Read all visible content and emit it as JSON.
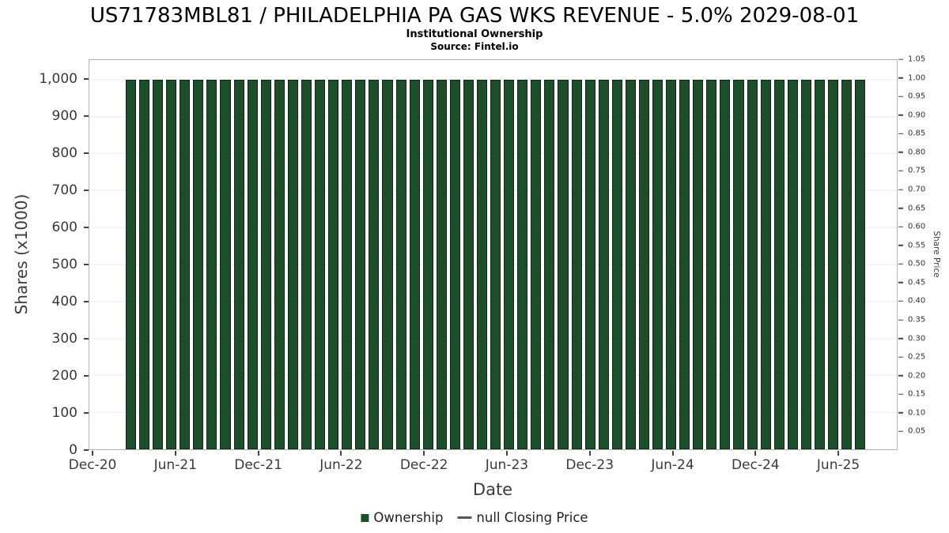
{
  "chart_data": {
    "type": "bar",
    "title": "US71783MBL81 / PHILADELPHIA PA GAS WKS REVENUE - 5.0% 2029-08-01",
    "subtitle": "Institutional Ownership",
    "source": "Source: Fintel.io",
    "xlabel": "Date",
    "ylabel_left": "Shares (x1000)",
    "ylabel_right": "Share Price",
    "bar_color": "#1e4d2c",
    "bar_edge_color": "#0d2b16",
    "ylim_left": [
      0,
      1053
    ],
    "ylim_right": [
      0,
      1.05
    ],
    "x_tick_labels": [
      "Dec-20",
      "Jun-21",
      "Dec-21",
      "Jun-22",
      "Dec-22",
      "Jun-23",
      "Dec-23",
      "Jun-24",
      "Dec-24",
      "Jun-25"
    ],
    "y_ticks_left": {
      "labels": [
        "0",
        "100",
        "200",
        "300",
        "400",
        "500",
        "600",
        "700",
        "800",
        "900",
        "1,000"
      ],
      "values": [
        0,
        100,
        200,
        300,
        400,
        500,
        600,
        700,
        800,
        900,
        1000
      ]
    },
    "y_ticks_right_labels": [
      "0.05",
      "0.10",
      "0.15",
      "0.20",
      "0.25",
      "0.30",
      "0.35",
      "0.40",
      "0.45",
      "0.50",
      "0.55",
      "0.60",
      "0.65",
      "0.70",
      "0.75",
      "0.80",
      "0.85",
      "0.90",
      "0.95",
      "1.00",
      "1.05"
    ],
    "categories": [
      "Feb-21",
      "Mar-21",
      "Apr-21",
      "May-21",
      "Jun-21",
      "Jul-21",
      "Aug-21",
      "Sep-21",
      "Oct-21",
      "Nov-21",
      "Dec-21",
      "Jan-22",
      "Feb-22",
      "Mar-22",
      "Apr-22",
      "May-22",
      "Jun-22",
      "Jul-22",
      "Aug-22",
      "Sep-22",
      "Oct-22",
      "Nov-22",
      "Dec-22",
      "Jan-23",
      "Feb-23",
      "Mar-23",
      "Apr-23",
      "May-23",
      "Jun-23",
      "Jul-23",
      "Aug-23",
      "Sep-23",
      "Oct-23",
      "Nov-23",
      "Dec-23",
      "Jan-24",
      "Feb-24",
      "Mar-24",
      "Apr-24",
      "May-24",
      "Jun-24",
      "Jul-24",
      "Aug-24",
      "Sep-24",
      "Oct-24",
      "Nov-24",
      "Dec-24",
      "Jan-25",
      "Feb-25",
      "Mar-25",
      "Apr-25",
      "May-25",
      "Jun-25",
      "Jul-25",
      "Aug-25"
    ],
    "series": [
      {
        "name": "Ownership",
        "values": [
          1000,
          1000,
          1000,
          1000,
          1000,
          1000,
          1000,
          1000,
          1000,
          1000,
          1000,
          1000,
          1000,
          1000,
          1000,
          1000,
          1000,
          1000,
          1000,
          1000,
          1000,
          1000,
          1000,
          1000,
          1000,
          1000,
          1000,
          1000,
          1000,
          1000,
          1000,
          1000,
          1000,
          1000,
          1000,
          1000,
          1000,
          1000,
          1000,
          1000,
          1000,
          1000,
          1000,
          1000,
          1000,
          1000,
          1000,
          1000,
          1000,
          1000,
          1000,
          1000,
          1000,
          1000,
          1000
        ]
      }
    ],
    "legend": [
      {
        "label": "Ownership",
        "marker": "square",
        "color": "#1e4d2c"
      },
      {
        "label": "null Closing Price",
        "marker": "line",
        "color": "#555555"
      }
    ],
    "grid": "horizontal",
    "legend_position": "bottom-center"
  }
}
